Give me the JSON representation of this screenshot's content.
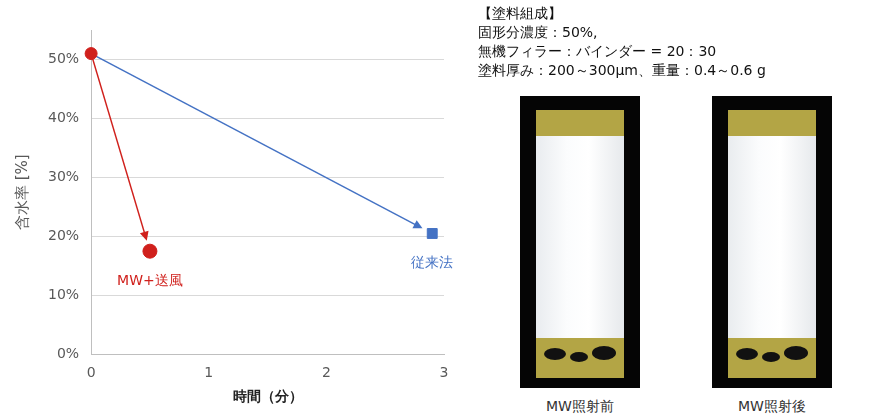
{
  "chart_data": {
    "type": "scatter",
    "x_label": "時間（分）",
    "y_label": "含水率 [%]",
    "xlim": [
      0,
      3
    ],
    "xticks": [
      0,
      1,
      2,
      3
    ],
    "ylim": [
      0,
      55
    ],
    "yticks": [
      {
        "value": 0,
        "label": "0%"
      },
      {
        "value": 10,
        "label": "10%"
      },
      {
        "value": 20,
        "label": "20%"
      },
      {
        "value": 30,
        "label": "30%"
      },
      {
        "value": 40,
        "label": "40%"
      },
      {
        "value": 50,
        "label": "50%"
      }
    ],
    "grid": true,
    "series": [
      {
        "name": "MW+送風",
        "color": "#d0201c",
        "x": [
          0,
          0.5
        ],
        "values": [
          51,
          17.5
        ],
        "marker": "circle",
        "line_style": "arrow"
      },
      {
        "name": "従来法",
        "color": "#4472c4",
        "x": [
          0,
          2.9
        ],
        "values": [
          51,
          20.5
        ],
        "marker": "square",
        "line_style": "arrow"
      }
    ]
  },
  "composition": {
    "title": "【塗料組成】",
    "lines": [
      "固形分濃度：50%,",
      "無機フィラー：バインダー = 20：30",
      "塗料厚み：200～300μm、重量：0.4～0.6 g"
    ]
  },
  "photos": [
    {
      "caption": "MW照射前"
    },
    {
      "caption": "MW照射後"
    }
  ]
}
